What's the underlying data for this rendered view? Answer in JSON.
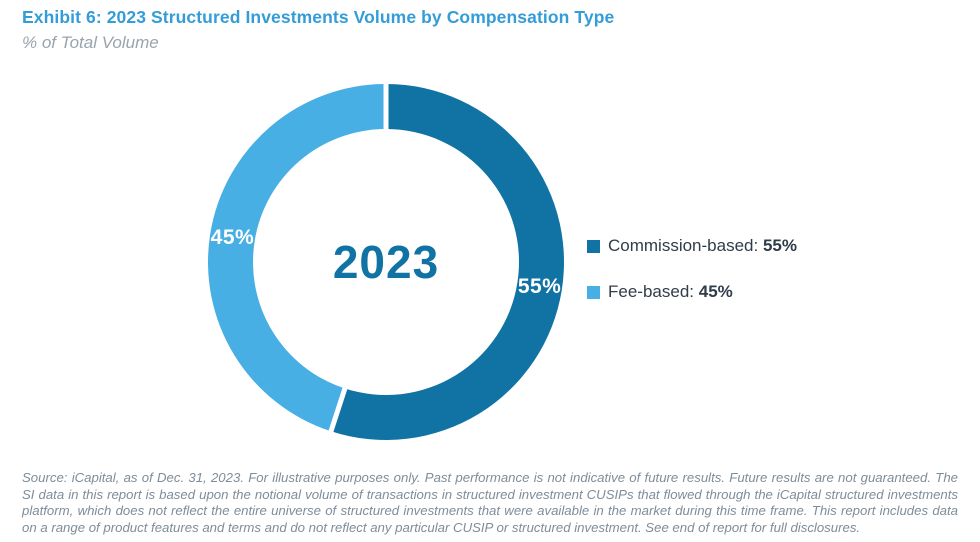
{
  "header": {
    "title": "Exhibit 6: 2023 Structured Investments Volume by Compensation Type",
    "subtitle": "% of Total Volume"
  },
  "chart_data": {
    "type": "pie",
    "variant": "donut",
    "title": "Exhibit 6: 2023 Structured Investments Volume by Compensation Type",
    "subtitle": "% of Total Volume",
    "center_label": "2023",
    "start_angle_deg": 0,
    "direction": "clockwise",
    "legend_position": "right",
    "series": [
      {
        "name": "Commission-based",
        "value": 55,
        "label": "55%",
        "color": "#1173A3"
      },
      {
        "name": "Fee-based",
        "value": 45,
        "label": "45%",
        "color": "#47AFE4"
      }
    ],
    "legend": [
      {
        "label": "Commission-based:",
        "value": "55%",
        "color": "#1173A3"
      },
      {
        "label": "Fee-based:",
        "value": "45%",
        "color": "#47AFE4"
      }
    ],
    "separator_color": "#FFFFFF",
    "segment_label_color": "#FFFFFF",
    "center_label_color": "#1173A3"
  },
  "footer": {
    "text": "Source: iCapital, as of Dec. 31, 2023. For illustrative purposes only. Past performance is not indicative of future results. Future results are not guaranteed. The SI data in this report is based upon the notional volume of transactions in structured investment CUSIPs that flowed through the iCapital structured investments platform, which does not reflect the entire universe of structured investments that were available in the market during this time frame. This report includes data on a range of product features and terms and do not reflect any particular CUSIP or structured investment. See end of report for full disclosures."
  },
  "colors": {
    "title_text": "#349DD8",
    "subtitle_text": "#98A4AE",
    "legend_text": "#303C49",
    "footer_text": "#7E8D99"
  }
}
